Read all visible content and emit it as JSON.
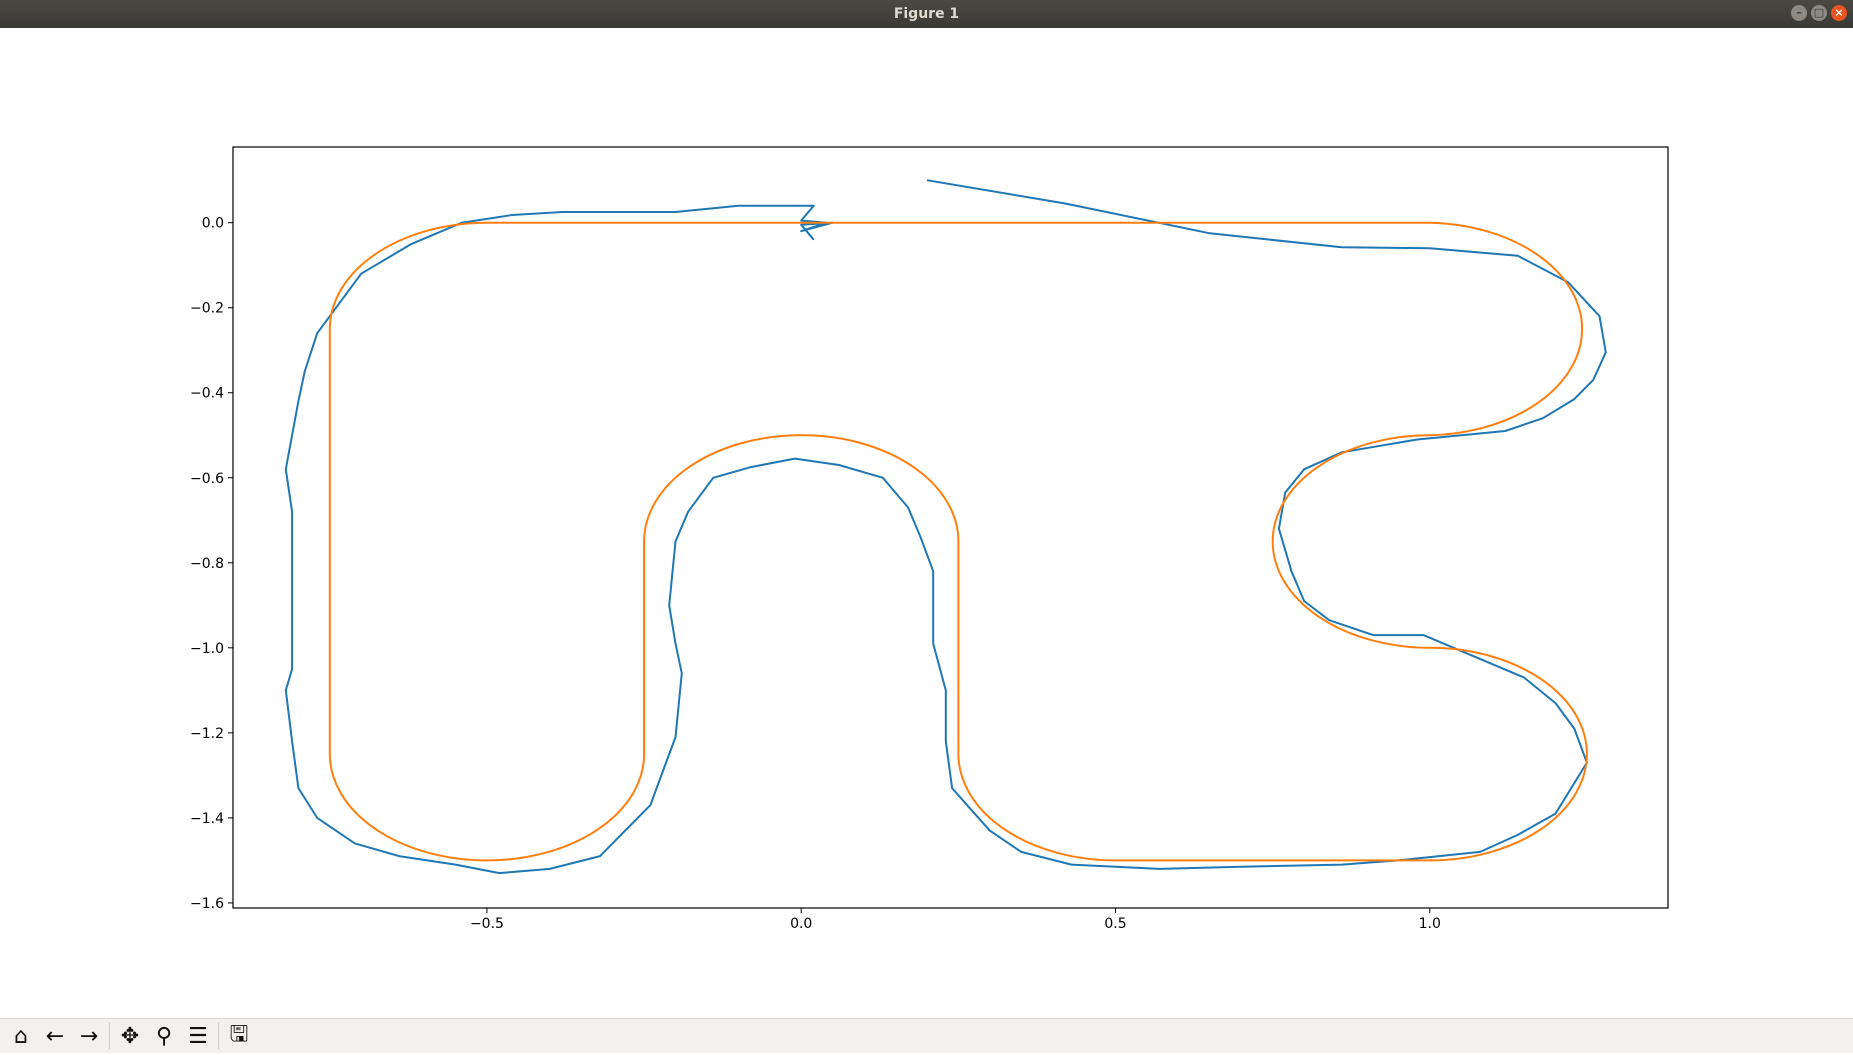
{
  "window": {
    "title": "Figure 1",
    "controls": {
      "minimize": "–",
      "maximize": "□",
      "close": "×"
    }
  },
  "toolbar": {
    "buttons": [
      {
        "name": "home-button",
        "icon": "home-icon",
        "glyph": "⌂"
      },
      {
        "name": "back-button",
        "icon": "arrow-left-icon",
        "glyph": "←"
      },
      {
        "name": "forward-button",
        "icon": "arrow-right-icon",
        "glyph": "→"
      },
      {
        "name": "pan-button",
        "icon": "move-icon",
        "glyph": "✥"
      },
      {
        "name": "zoom-button",
        "icon": "magnifier-icon",
        "glyph": "⚲"
      },
      {
        "name": "configure-subplots-button",
        "icon": "sliders-icon",
        "glyph": "☰"
      },
      {
        "name": "save-button",
        "icon": "floppy-disk-icon",
        "glyph": "🖫"
      }
    ]
  },
  "chart_data": {
    "type": "line",
    "title": "",
    "xlabel": "",
    "ylabel": "",
    "xlim": [
      -0.904,
      1.379
    ],
    "ylim": [
      -1.612,
      0.178
    ],
    "xticks": [
      -0.5,
      0.0,
      0.5,
      1.0
    ],
    "xtick_labels": [
      "−0.5",
      "0.0",
      "0.5",
      "1.0"
    ],
    "yticks": [
      0.0,
      -0.2,
      -0.4,
      -0.6,
      -0.8,
      -1.0,
      -1.2,
      -1.4,
      -1.6
    ],
    "ytick_labels": [
      "0.0",
      "−0.2",
      "−0.4",
      "−0.6",
      "−0.8",
      "−1.0",
      "−1.2",
      "−1.4",
      "−1.6"
    ],
    "grid": false,
    "legend": "none",
    "series": [
      {
        "color": "#1f77b4",
        "x": [
          0.2,
          0.42,
          0.65,
          0.86,
          1.0,
          1.14,
          1.22,
          1.27,
          1.28,
          1.26,
          1.23,
          1.18,
          1.12,
          0.98,
          0.86,
          0.8,
          0.77,
          0.76,
          0.78,
          0.8,
          0.84,
          0.91,
          0.99,
          1.07,
          1.15,
          1.2,
          1.23,
          1.25,
          1.2,
          1.14,
          1.08,
          0.95,
          0.86,
          0.7,
          0.57,
          0.43,
          0.35,
          0.3,
          0.27,
          0.24,
          0.23,
          0.23,
          0.21,
          0.21,
          0.19,
          0.17,
          0.13,
          0.06,
          -0.01,
          -0.08,
          -0.14,
          -0.18,
          -0.2,
          -0.21,
          -0.2,
          -0.19,
          -0.2,
          -0.22,
          -0.24,
          -0.28,
          -0.32,
          -0.4,
          -0.48,
          -0.55,
          -0.64,
          -0.71,
          -0.77,
          -0.8,
          -0.81,
          -0.82,
          -0.81,
          -0.81,
          -0.81,
          -0.81,
          -0.81,
          -0.82,
          -0.81,
          -0.8,
          -0.79,
          -0.77,
          -0.7,
          -0.62,
          -0.54,
          -0.46,
          -0.38,
          -0.28,
          -0.2,
          -0.1,
          -0.02,
          0.02,
          0.0,
          0.04,
          0.0,
          0.05,
          0.0,
          0.02
        ],
        "y": [
          0.1,
          0.045,
          -0.025,
          -0.058,
          -0.06,
          -0.078,
          -0.14,
          -0.22,
          -0.305,
          -0.37,
          -0.415,
          -0.46,
          -0.49,
          -0.51,
          -0.54,
          -0.58,
          -0.635,
          -0.72,
          -0.82,
          -0.89,
          -0.935,
          -0.97,
          -0.97,
          -1.02,
          -1.07,
          -1.13,
          -1.19,
          -1.27,
          -1.39,
          -1.44,
          -1.48,
          -1.5,
          -1.51,
          -1.515,
          -1.52,
          -1.51,
          -1.48,
          -1.43,
          -1.38,
          -1.33,
          -1.22,
          -1.1,
          -0.99,
          -0.82,
          -0.74,
          -0.67,
          -0.6,
          -0.57,
          -0.555,
          -0.575,
          -0.6,
          -0.68,
          -0.75,
          -0.9,
          -0.99,
          -1.06,
          -1.21,
          -1.29,
          -1.37,
          -1.43,
          -1.49,
          -1.52,
          -1.53,
          -1.51,
          -1.49,
          -1.46,
          -1.4,
          -1.33,
          -1.22,
          -1.1,
          -1.05,
          -0.93,
          -0.84,
          -0.75,
          -0.68,
          -0.58,
          -0.5,
          -0.42,
          -0.35,
          -0.26,
          -0.12,
          -0.05,
          0.0,
          0.018,
          0.025,
          0.025,
          0.025,
          0.04,
          0.04,
          0.04,
          0.005,
          0.0,
          -0.02,
          0.0,
          -0.005,
          -0.04
        ]
      },
      {
        "color": "#ff7f0e",
        "segments": [
          {
            "kind": "line",
            "from": [
              0.0,
              0.0
            ],
            "to": [
              1.0,
              0.0
            ]
          },
          {
            "kind": "arc",
            "center": [
              1.0,
              -0.25
            ],
            "r": 0.25,
            "from_deg": 90,
            "to_deg": -90,
            "dir": "cw"
          },
          {
            "kind": "arc",
            "center": [
              1.0,
              -0.75
            ],
            "r": 0.25,
            "from_deg": 90,
            "to_deg": 270,
            "dir": "ccw"
          },
          {
            "kind": "arc",
            "center": [
              1.0,
              -1.25
            ],
            "r": 0.25,
            "from_deg": 90,
            "to_deg": -90,
            "dir": "cw"
          },
          {
            "kind": "line",
            "from": [
              1.0,
              -1.5
            ],
            "to": [
              0.5,
              -1.5
            ]
          },
          {
            "kind": "arc",
            "center": [
              0.5,
              -1.25
            ],
            "r": 0.25,
            "from_deg": -90,
            "to_deg": -180,
            "dir": "cw"
          },
          {
            "kind": "line",
            "from": [
              0.25,
              -1.25
            ],
            "to": [
              0.25,
              -0.75
            ]
          },
          {
            "kind": "arc",
            "center": [
              0.0,
              -0.75
            ],
            "r": 0.25,
            "from_deg": 0,
            "to_deg": 180,
            "dir": "ccw"
          },
          {
            "kind": "line",
            "from": [
              -0.25,
              -0.75
            ],
            "to": [
              -0.25,
              -1.25
            ]
          },
          {
            "kind": "arc",
            "center": [
              -0.5,
              -1.25
            ],
            "r": 0.25,
            "from_deg": 0,
            "to_deg": -90,
            "dir": "cw"
          },
          {
            "kind": "arc",
            "center": [
              -0.5,
              -1.25
            ],
            "r": 0.25,
            "from_deg": -90,
            "to_deg": -180,
            "dir": "cw"
          },
          {
            "kind": "line",
            "from": [
              -0.75,
              -1.25
            ],
            "to": [
              -0.75,
              -0.25
            ]
          },
          {
            "kind": "arc",
            "center": [
              -0.5,
              -0.25
            ],
            "r": 0.25,
            "from_deg": 180,
            "to_deg": 90,
            "dir": "cw"
          },
          {
            "kind": "line",
            "from": [
              -0.5,
              0.0
            ],
            "to": [
              0.0,
              0.0
            ]
          }
        ]
      }
    ]
  }
}
